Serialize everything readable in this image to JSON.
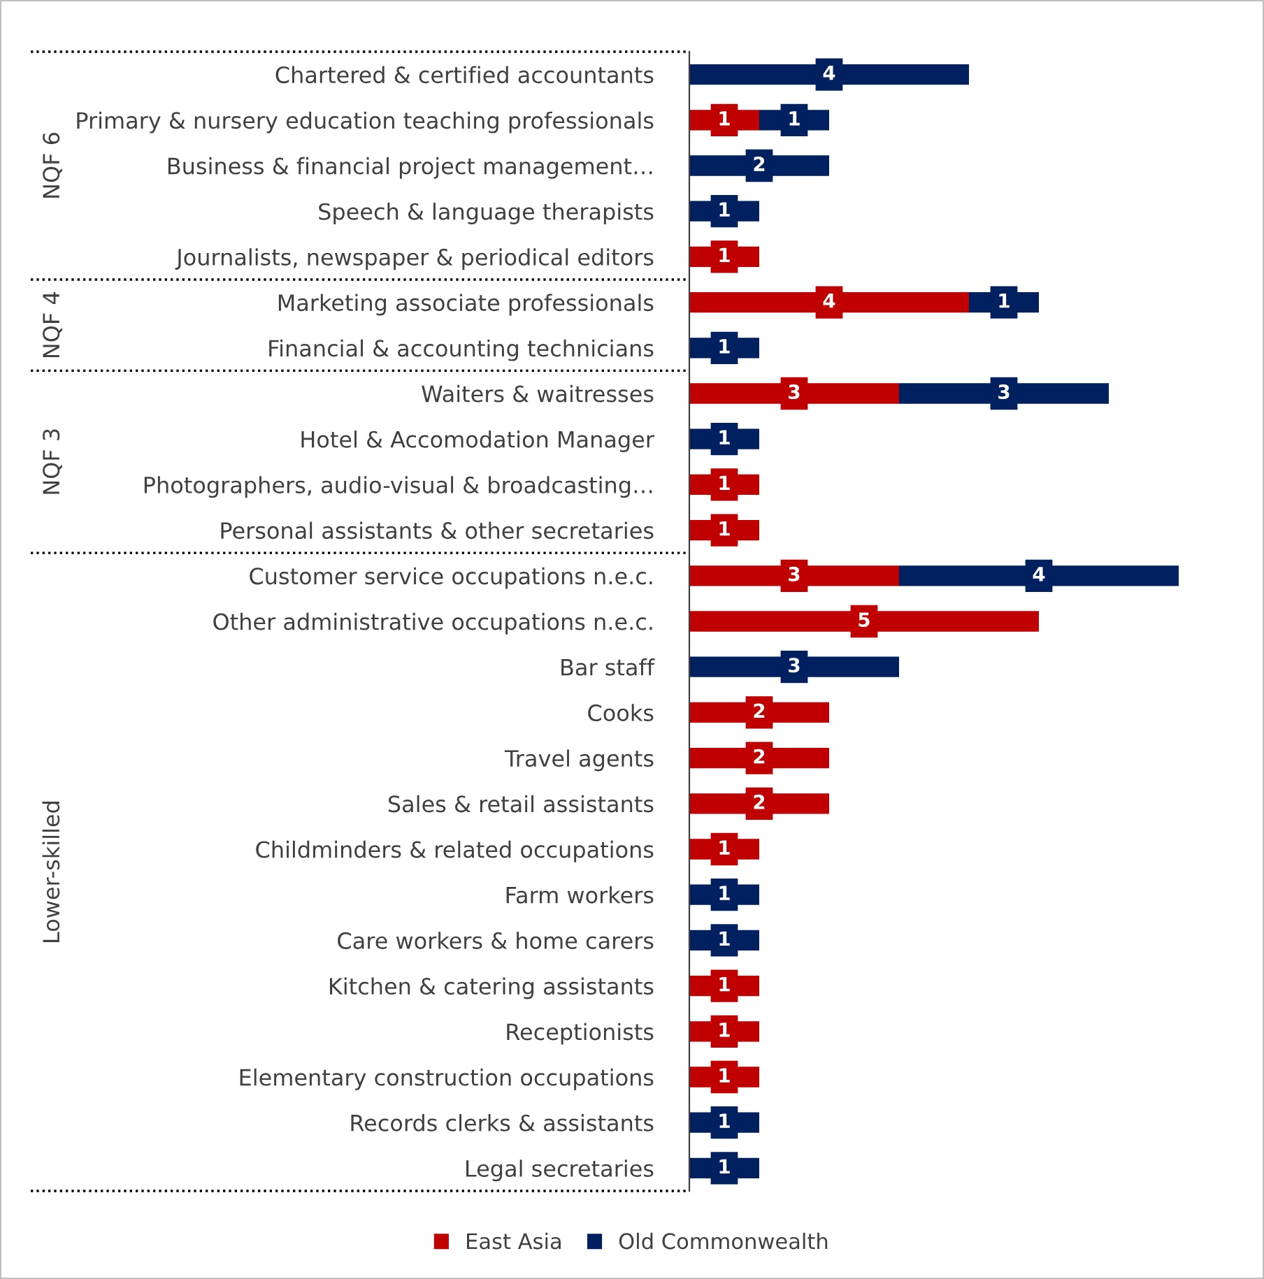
{
  "chart_data": {
    "type": "bar",
    "orientation": "horizontal",
    "stacked": true,
    "categories": [
      "Chartered & certified accountants",
      "Primary & nursery education teaching professionals",
      "Business & financial project management…",
      "Speech & language therapists",
      "Journalists, newspaper & periodical editors",
      "Marketing associate professionals",
      "Financial & accounting technicians",
      "Waiters & waitresses",
      "Hotel & Accomodation Manager",
      "Photographers, audio-visual & broadcasting…",
      "Personal assistants & other secretaries",
      "Customer service occupations n.e.c.",
      "Other administrative occupations n.e.c.",
      "Bar staff",
      "Cooks",
      "Travel agents",
      "Sales & retail assistants",
      "Childminders & related occupations",
      "Farm workers",
      "Care workers & home carers",
      "Kitchen & catering assistants",
      "Receptionists",
      "Elementary construction occupations",
      "Records clerks & assistants",
      "Legal secretaries"
    ],
    "series": [
      {
        "name": "East Asia",
        "color": "#c00000",
        "values": [
          null,
          1,
          null,
          null,
          1,
          4,
          null,
          3,
          null,
          1,
          1,
          3,
          5,
          null,
          2,
          2,
          2,
          1,
          null,
          null,
          1,
          1,
          1,
          null,
          null
        ]
      },
      {
        "name": "Old Commonwealth",
        "color": "#002060",
        "values": [
          4,
          1,
          2,
          1,
          null,
          1,
          1,
          3,
          1,
          null,
          null,
          4,
          null,
          3,
          null,
          null,
          null,
          null,
          1,
          1,
          null,
          null,
          null,
          1,
          1
        ]
      }
    ],
    "annotations": [
      "NQF 6",
      "NQF 4",
      "NQF 3",
      "Lower-skilled"
    ],
    "data_labels": true,
    "tick_labels": "y",
    "grid": false,
    "legend": "bottom"
  }
}
